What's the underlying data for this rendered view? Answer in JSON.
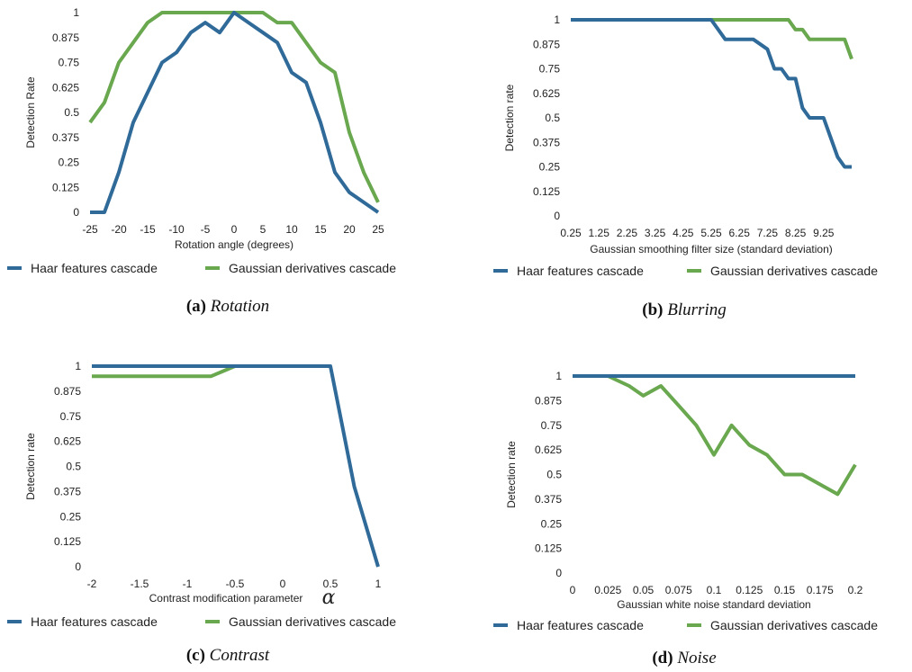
{
  "colors": {
    "haar": "#2f6a99",
    "gauss": "#6aa84f"
  },
  "chart_data": [
    {
      "type": "line",
      "xlabel": "Rotation angle (degrees)",
      "ylabel": "Detection Rate",
      "xlim": [
        -25,
        25
      ],
      "ylim": [
        0,
        1
      ],
      "xticks": [
        "-25",
        "-20",
        "-15",
        "-10",
        "-5",
        "0",
        "5",
        "10",
        "15",
        "20",
        "25"
      ],
      "yticks": [
        "0",
        "0.125",
        "0.25",
        "0.375",
        "0.5",
        "0.625",
        "0.75",
        "0.875",
        "1"
      ],
      "legend": "bottom",
      "caption_bold": "(a)",
      "caption_italic": "Rotation",
      "series": [
        {
          "name": "Haar features cascade",
          "x": [
            -25,
            -22.5,
            -20,
            -17.5,
            -15,
            -12.5,
            -10,
            -7.5,
            -5,
            -2.5,
            0,
            2.5,
            5,
            7.5,
            10,
            12.5,
            15,
            17.5,
            20,
            22.5,
            25
          ],
          "y": [
            0,
            0,
            0.2,
            0.45,
            0.6,
            0.75,
            0.8,
            0.9,
            0.95,
            0.9,
            1,
            0.95,
            0.9,
            0.85,
            0.7,
            0.65,
            0.45,
            0.2,
            0.1,
            0.05,
            0
          ]
        },
        {
          "name": "Gaussian derivatives cascade",
          "x": [
            -25,
            -22.5,
            -20,
            -17.5,
            -15,
            -12.5,
            -10,
            -7.5,
            -5,
            -2.5,
            0,
            2.5,
            5,
            7.5,
            10,
            12.5,
            15,
            17.5,
            20,
            22.5,
            25
          ],
          "y": [
            0.45,
            0.55,
            0.75,
            0.85,
            0.95,
            1,
            1,
            1,
            1,
            1,
            1,
            1,
            1,
            0.95,
            0.95,
            0.85,
            0.75,
            0.7,
            0.4,
            0.2,
            0.05
          ]
        }
      ]
    },
    {
      "type": "line",
      "xlabel": "Gaussian smoothing filter size (standard deviation)",
      "ylabel": "Detection rate",
      "xlim": [
        0.25,
        10.25
      ],
      "ylim": [
        0,
        1
      ],
      "xtickvals": [
        0.25,
        1.25,
        2.25,
        3.25,
        4.25,
        5.25,
        6.25,
        7.25,
        8.25,
        9.25
      ],
      "xticks": [
        "0.25",
        "1.25",
        "2.25",
        "3.25",
        "4.25",
        "5.25",
        "6.25",
        "7.25",
        "8.25",
        "9.25"
      ],
      "yticks": [
        "0",
        "0.125",
        "0.25",
        "0.375",
        "0.5",
        "0.625",
        "0.75",
        "0.875",
        "1"
      ],
      "legend": "bottom",
      "caption_bold": "(b)",
      "caption_italic": "Blurring",
      "series": [
        {
          "name": "Haar features cascade",
          "x": [
            0.25,
            1.25,
            2.25,
            3.25,
            4.25,
            5.25,
            5.75,
            6.25,
            6.75,
            7.25,
            7.5,
            7.75,
            8.0,
            8.25,
            8.5,
            8.75,
            9.0,
            9.25,
            9.5,
            9.75,
            10.0,
            10.25
          ],
          "y": [
            1,
            1,
            1,
            1,
            1,
            1,
            0.9,
            0.9,
            0.9,
            0.85,
            0.75,
            0.75,
            0.7,
            0.7,
            0.55,
            0.5,
            0.5,
            0.5,
            0.4,
            0.3,
            0.25,
            0.25
          ]
        },
        {
          "name": "Gaussian derivatives cascade",
          "x": [
            0.25,
            1.25,
            2.25,
            3.25,
            4.25,
            5.25,
            6.25,
            7.25,
            8.0,
            8.25,
            8.5,
            8.75,
            9.0,
            9.5,
            10.0,
            10.25
          ],
          "y": [
            1,
            1,
            1,
            1,
            1,
            1,
            1,
            1,
            1,
            0.95,
            0.95,
            0.9,
            0.9,
            0.9,
            0.9,
            0.8
          ]
        }
      ]
    },
    {
      "type": "line",
      "xlabel": "Contrast modification parameter",
      "xlabel_symbol": "α",
      "ylabel": "Detection rate",
      "xlim": [
        -2,
        1
      ],
      "ylim": [
        0,
        1
      ],
      "xticks": [
        "-2",
        "-1.5",
        "-1",
        "-0.5",
        "0",
        "0.5",
        "1"
      ],
      "yticks": [
        "0",
        "0.125",
        "0.25",
        "0.375",
        "0.5",
        "0.625",
        "0.75",
        "0.875",
        "1"
      ],
      "legend": "bottom",
      "caption_bold": "(c)",
      "caption_italic": "Contrast",
      "series": [
        {
          "name": "Haar features cascade",
          "x": [
            -2,
            -1.5,
            -1,
            -0.5,
            0,
            0.5,
            0.625,
            0.75,
            1
          ],
          "y": [
            1,
            1,
            1,
            1,
            1,
            1,
            0.7,
            0.4,
            0
          ]
        },
        {
          "name": "Gaussian derivatives cascade",
          "x": [
            -2,
            -1.5,
            -1,
            -0.75,
            -0.5,
            0,
            0.5
          ],
          "y": [
            0.95,
            0.95,
            0.95,
            0.95,
            1,
            1,
            1
          ]
        }
      ]
    },
    {
      "type": "line",
      "xlabel": "Gaussian white noise standard deviation",
      "ylabel": "Detection rate",
      "xlim": [
        0,
        0.2
      ],
      "ylim": [
        0,
        1
      ],
      "xticks": [
        "0",
        "0.025",
        "0.05",
        "0.075",
        "0.1",
        "0.125",
        "0.15",
        "0.175",
        "0.2"
      ],
      "yticks": [
        "0",
        "0.125",
        "0.25",
        "0.375",
        "0.5",
        "0.625",
        "0.75",
        "0.875",
        "1"
      ],
      "legend": "bottom",
      "caption_bold": "(d)",
      "caption_italic": "Noise",
      "series": [
        {
          "name": "Haar features cascade",
          "x": [
            0,
            0.025,
            0.05,
            0.075,
            0.1,
            0.125,
            0.15,
            0.175,
            0.2
          ],
          "y": [
            1,
            1,
            1,
            1,
            1,
            1,
            1,
            1,
            1
          ]
        },
        {
          "name": "Gaussian derivatives cascade",
          "x": [
            0,
            0.025,
            0.04,
            0.05,
            0.0625,
            0.075,
            0.0875,
            0.1,
            0.1125,
            0.125,
            0.1375,
            0.15,
            0.1625,
            0.175,
            0.1875,
            0.2
          ],
          "y": [
            1,
            1,
            0.95,
            0.9,
            0.95,
            0.85,
            0.75,
            0.6,
            0.75,
            0.65,
            0.6,
            0.5,
            0.5,
            0.45,
            0.4,
            0.55
          ]
        }
      ]
    }
  ]
}
